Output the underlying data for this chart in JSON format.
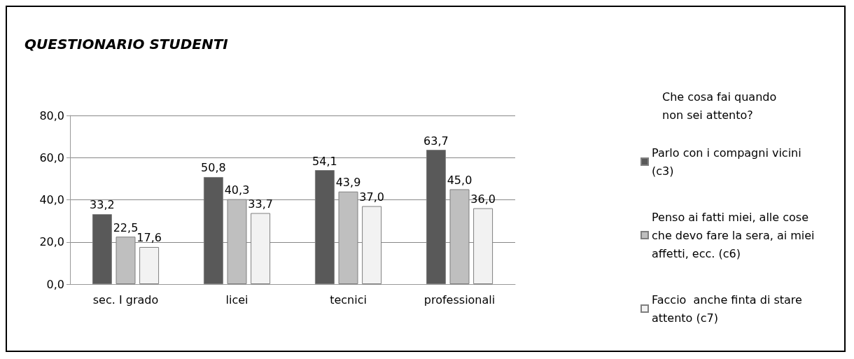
{
  "chart_data": {
    "type": "bar",
    "title": "QUESTIONARIO STUDENTI",
    "legend_title": "Che cosa fai quando non sei attento?",
    "categories": [
      "sec. I grado",
      "licei",
      "tecnici",
      "professionali"
    ],
    "series": [
      {
        "name": "Parlo con i compagni vicini (c3)",
        "color": "#595959",
        "values": [
          33.2,
          50.8,
          54.1,
          63.7
        ],
        "value_labels": [
          "33,2",
          "50,8",
          "54,1",
          "63,7"
        ]
      },
      {
        "name": "Penso ai fatti miei, alle cose che devo fare la sera, ai miei affetti, ecc. (c6)",
        "color": "#bfbfbf",
        "values": [
          22.5,
          40.3,
          43.9,
          45.0
        ],
        "value_labels": [
          "22,5",
          "40,3",
          "43,9",
          "45,0"
        ]
      },
      {
        "name": "Faccio  anche finta di stare attento (c7)",
        "color": "#f2f2f2",
        "values": [
          17.6,
          33.7,
          37.0,
          36.0
        ],
        "value_labels": [
          "17,6",
          "33,7",
          "37,0",
          "36,0"
        ]
      }
    ],
    "ylim": [
      0,
      80
    ],
    "yticks": [
      {
        "value": 0,
        "label": "0,0"
      },
      {
        "value": 20,
        "label": "20,0"
      },
      {
        "value": 40,
        "label": "40,0"
      },
      {
        "value": 60,
        "label": "60,0"
      },
      {
        "value": 80,
        "label": "80,0"
      }
    ],
    "grid": "y",
    "legend": "right"
  }
}
